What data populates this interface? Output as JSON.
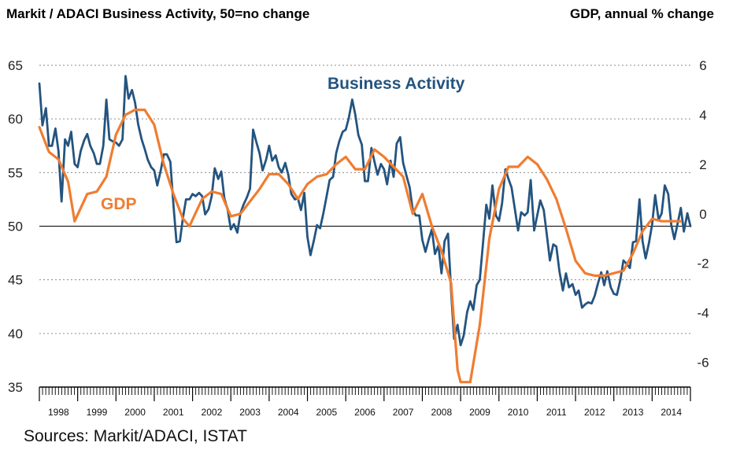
{
  "chart_data": {
    "type": "line",
    "title_left": "Markit / ADACI  Business Activity, 50=no change",
    "title_right": "GDP, annual % change",
    "source": "Sources: Markit/ADACI, ISTAT",
    "left_axis": {
      "ylim": [
        35,
        65
      ],
      "ticks": [
        "35",
        "40",
        "45",
        "50",
        "55",
        "60",
        "65"
      ]
    },
    "right_axis": {
      "ylim": [
        -7,
        6
      ],
      "ticks": [
        "-6",
        "-4",
        "-2",
        "0",
        "2",
        "4",
        "6"
      ]
    },
    "reference_line": 50,
    "grid": "dotted horizontal",
    "x_categories": [
      "1998",
      "1999",
      "2000",
      "2001",
      "2002",
      "2003",
      "2004",
      "2005",
      "2006",
      "2007",
      "2008",
      "2009",
      "2010",
      "2011",
      "2012",
      "2013",
      "2014"
    ],
    "series": [
      {
        "name": "Business Activity",
        "axis": "left",
        "color": "#24547f",
        "points": [
          [
            1998.0,
            63.3
          ],
          [
            1998.08,
            59.4
          ],
          [
            1998.17,
            61.0
          ],
          [
            1998.25,
            57.5
          ],
          [
            1998.33,
            57.5
          ],
          [
            1998.42,
            59.1
          ],
          [
            1998.5,
            57.0
          ],
          [
            1998.58,
            52.3
          ],
          [
            1998.67,
            58.1
          ],
          [
            1998.75,
            57.5
          ],
          [
            1998.83,
            58.8
          ],
          [
            1998.92,
            55.8
          ],
          [
            1999.0,
            55.5
          ],
          [
            1999.08,
            57.0
          ],
          [
            1999.17,
            58.0
          ],
          [
            1999.25,
            58.6
          ],
          [
            1999.33,
            57.5
          ],
          [
            1999.42,
            56.8
          ],
          [
            1999.5,
            55.8
          ],
          [
            1999.58,
            55.8
          ],
          [
            1999.67,
            57.5
          ],
          [
            1999.75,
            61.8
          ],
          [
            1999.83,
            58.1
          ],
          [
            1999.92,
            57.9
          ],
          [
            2000.0,
            57.8
          ],
          [
            2000.08,
            57.5
          ],
          [
            2000.17,
            58.1
          ],
          [
            2000.25,
            64.0
          ],
          [
            2000.33,
            61.9
          ],
          [
            2000.42,
            62.7
          ],
          [
            2000.5,
            61.5
          ],
          [
            2000.58,
            59.5
          ],
          [
            2000.67,
            58.1
          ],
          [
            2000.75,
            57.2
          ],
          [
            2000.83,
            56.2
          ],
          [
            2000.92,
            55.5
          ],
          [
            2001.0,
            55.2
          ],
          [
            2001.08,
            53.8
          ],
          [
            2001.17,
            55.2
          ],
          [
            2001.25,
            56.7
          ],
          [
            2001.33,
            56.7
          ],
          [
            2001.42,
            56.0
          ],
          [
            2001.5,
            52.0
          ],
          [
            2001.58,
            48.5
          ],
          [
            2001.67,
            48.6
          ],
          [
            2001.75,
            50.8
          ],
          [
            2001.83,
            52.5
          ],
          [
            2001.92,
            52.5
          ],
          [
            2002.0,
            53.0
          ],
          [
            2002.08,
            52.8
          ],
          [
            2002.17,
            53.1
          ],
          [
            2002.25,
            52.8
          ],
          [
            2002.33,
            51.1
          ],
          [
            2002.42,
            51.6
          ],
          [
            2002.5,
            52.8
          ],
          [
            2002.58,
            55.4
          ],
          [
            2002.67,
            54.4
          ],
          [
            2002.75,
            55.1
          ],
          [
            2002.83,
            52.6
          ],
          [
            2002.92,
            51.5
          ],
          [
            2003.0,
            49.7
          ],
          [
            2003.08,
            50.2
          ],
          [
            2003.17,
            49.4
          ],
          [
            2003.25,
            51.2
          ],
          [
            2003.33,
            52.0
          ],
          [
            2003.42,
            52.7
          ],
          [
            2003.5,
            53.5
          ],
          [
            2003.58,
            59.0
          ],
          [
            2003.67,
            57.8
          ],
          [
            2003.75,
            56.8
          ],
          [
            2003.83,
            55.2
          ],
          [
            2003.92,
            56.2
          ],
          [
            2004.0,
            57.5
          ],
          [
            2004.08,
            56.1
          ],
          [
            2004.17,
            56.6
          ],
          [
            2004.25,
            55.5
          ],
          [
            2004.33,
            55.0
          ],
          [
            2004.42,
            55.9
          ],
          [
            2004.5,
            54.8
          ],
          [
            2004.58,
            53.0
          ],
          [
            2004.67,
            52.5
          ],
          [
            2004.75,
            52.6
          ],
          [
            2004.83,
            51.5
          ],
          [
            2004.92,
            53.1
          ],
          [
            2005.0,
            49.0
          ],
          [
            2005.08,
            47.3
          ],
          [
            2005.17,
            48.7
          ],
          [
            2005.25,
            50.1
          ],
          [
            2005.33,
            49.8
          ],
          [
            2005.42,
            51.3
          ],
          [
            2005.5,
            52.8
          ],
          [
            2005.58,
            54.3
          ],
          [
            2005.67,
            54.6
          ],
          [
            2005.75,
            56.8
          ],
          [
            2005.83,
            57.9
          ],
          [
            2005.92,
            58.8
          ],
          [
            2006.0,
            59.0
          ],
          [
            2006.08,
            60.1
          ],
          [
            2006.17,
            61.8
          ],
          [
            2006.25,
            60.4
          ],
          [
            2006.33,
            58.5
          ],
          [
            2006.42,
            57.6
          ],
          [
            2006.5,
            54.2
          ],
          [
            2006.58,
            54.2
          ],
          [
            2006.67,
            57.3
          ],
          [
            2006.75,
            56.0
          ],
          [
            2006.83,
            54.8
          ],
          [
            2006.92,
            55.8
          ],
          [
            2007.0,
            55.3
          ],
          [
            2007.08,
            53.9
          ],
          [
            2007.17,
            56.1
          ],
          [
            2007.25,
            54.6
          ],
          [
            2007.33,
            57.7
          ],
          [
            2007.42,
            58.3
          ],
          [
            2007.5,
            55.9
          ],
          [
            2007.58,
            54.8
          ],
          [
            2007.67,
            53.6
          ],
          [
            2007.75,
            51.5
          ],
          [
            2007.83,
            51.0
          ],
          [
            2007.92,
            51.0
          ],
          [
            2008.0,
            48.7
          ],
          [
            2008.08,
            47.6
          ],
          [
            2008.17,
            48.8
          ],
          [
            2008.25,
            49.7
          ],
          [
            2008.33,
            47.4
          ],
          [
            2008.42,
            48.2
          ],
          [
            2008.5,
            45.6
          ],
          [
            2008.58,
            48.6
          ],
          [
            2008.67,
            49.3
          ],
          [
            2008.75,
            44.0
          ],
          [
            2008.83,
            39.5
          ],
          [
            2008.92,
            40.8
          ],
          [
            2009.0,
            38.9
          ],
          [
            2009.08,
            39.8
          ],
          [
            2009.17,
            42.0
          ],
          [
            2009.25,
            43.0
          ],
          [
            2009.33,
            42.2
          ],
          [
            2009.42,
            44.5
          ],
          [
            2009.5,
            45.0
          ],
          [
            2009.58,
            48.2
          ],
          [
            2009.67,
            52.0
          ],
          [
            2009.75,
            50.7
          ],
          [
            2009.83,
            53.8
          ],
          [
            2009.92,
            51.0
          ],
          [
            2010.0,
            50.5
          ],
          [
            2010.08,
            52.1
          ],
          [
            2010.17,
            55.3
          ],
          [
            2010.25,
            54.4
          ],
          [
            2010.33,
            53.6
          ],
          [
            2010.42,
            51.5
          ],
          [
            2010.5,
            49.6
          ],
          [
            2010.58,
            51.3
          ],
          [
            2010.67,
            51.0
          ],
          [
            2010.75,
            51.3
          ],
          [
            2010.83,
            54.3
          ],
          [
            2010.92,
            49.6
          ],
          [
            2011.0,
            51.0
          ],
          [
            2011.08,
            52.4
          ],
          [
            2011.17,
            51.5
          ],
          [
            2011.25,
            49.2
          ],
          [
            2011.33,
            46.8
          ],
          [
            2011.42,
            48.3
          ],
          [
            2011.5,
            48.1
          ],
          [
            2011.58,
            45.8
          ],
          [
            2011.67,
            44.0
          ],
          [
            2011.75,
            45.6
          ],
          [
            2011.83,
            44.3
          ],
          [
            2011.92,
            44.6
          ],
          [
            2012.0,
            43.6
          ],
          [
            2012.08,
            44.0
          ],
          [
            2012.17,
            42.4
          ],
          [
            2012.25,
            42.7
          ],
          [
            2012.33,
            42.9
          ],
          [
            2012.42,
            42.8
          ],
          [
            2012.5,
            43.5
          ],
          [
            2012.58,
            44.6
          ],
          [
            2012.67,
            45.7
          ],
          [
            2012.75,
            44.5
          ],
          [
            2012.83,
            45.8
          ],
          [
            2012.92,
            44.3
          ],
          [
            2013.0,
            43.7
          ],
          [
            2013.08,
            43.6
          ],
          [
            2013.17,
            45.0
          ],
          [
            2013.25,
            46.8
          ],
          [
            2013.33,
            46.5
          ],
          [
            2013.42,
            46.1
          ],
          [
            2013.5,
            48.5
          ],
          [
            2013.58,
            48.6
          ],
          [
            2013.67,
            52.5
          ],
          [
            2013.75,
            48.6
          ],
          [
            2013.83,
            47.0
          ],
          [
            2013.92,
            48.5
          ],
          [
            2014.0,
            50.2
          ],
          [
            2014.08,
            52.9
          ],
          [
            2014.17,
            50.6
          ],
          [
            2014.25,
            51.2
          ],
          [
            2014.33,
            53.8
          ],
          [
            2014.42,
            53.0
          ],
          [
            2014.5,
            50.1
          ],
          [
            2014.58,
            48.8
          ],
          [
            2014.67,
            50.3
          ],
          [
            2014.75,
            51.7
          ],
          [
            2014.83,
            49.5
          ],
          [
            2014.92,
            51.2
          ],
          [
            2015.0,
            50.0
          ]
        ]
      },
      {
        "name": "GDP",
        "axis": "right",
        "color": "#ef7d31",
        "points": [
          [
            1998.0,
            3.5
          ],
          [
            1998.25,
            2.5
          ],
          [
            1998.5,
            2.2
          ],
          [
            1998.75,
            1.3
          ],
          [
            1998.92,
            -0.3
          ],
          [
            1999.25,
            0.8
          ],
          [
            1999.5,
            0.9
          ],
          [
            1999.75,
            1.5
          ],
          [
            2000.0,
            3.2
          ],
          [
            2000.25,
            4.0
          ],
          [
            2000.5,
            4.2
          ],
          [
            2000.75,
            4.2
          ],
          [
            2001.0,
            3.6
          ],
          [
            2001.25,
            2.0
          ],
          [
            2001.5,
            0.8
          ],
          [
            2001.75,
            -0.2
          ],
          [
            2001.92,
            -0.5
          ],
          [
            2002.25,
            0.6
          ],
          [
            2002.5,
            0.9
          ],
          [
            2002.75,
            0.8
          ],
          [
            2003.0,
            -0.1
          ],
          [
            2003.25,
            0.0
          ],
          [
            2003.5,
            0.5
          ],
          [
            2003.75,
            1.0
          ],
          [
            2004.0,
            1.6
          ],
          [
            2004.25,
            1.6
          ],
          [
            2004.5,
            1.2
          ],
          [
            2004.75,
            0.6
          ],
          [
            2005.0,
            1.2
          ],
          [
            2005.25,
            1.5
          ],
          [
            2005.5,
            1.6
          ],
          [
            2005.75,
            2.0
          ],
          [
            2006.0,
            2.3
          ],
          [
            2006.25,
            1.8
          ],
          [
            2006.5,
            1.8
          ],
          [
            2006.75,
            2.6
          ],
          [
            2007.0,
            2.3
          ],
          [
            2007.25,
            1.9
          ],
          [
            2007.5,
            1.5
          ],
          [
            2007.75,
            0.0
          ],
          [
            2008.0,
            0.8
          ],
          [
            2008.25,
            -0.5
          ],
          [
            2008.5,
            -1.5
          ],
          [
            2008.75,
            -2.8
          ],
          [
            2008.92,
            -6.3
          ],
          [
            2009.0,
            -6.8
          ],
          [
            2009.25,
            -6.8
          ],
          [
            2009.5,
            -4.5
          ],
          [
            2009.75,
            -1.0
          ],
          [
            2010.0,
            1.0
          ],
          [
            2010.25,
            1.9
          ],
          [
            2010.5,
            1.9
          ],
          [
            2010.75,
            2.3
          ],
          [
            2011.0,
            2.0
          ],
          [
            2011.25,
            1.4
          ],
          [
            2011.5,
            0.6
          ],
          [
            2011.75,
            -0.6
          ],
          [
            2012.0,
            -1.9
          ],
          [
            2012.25,
            -2.4
          ],
          [
            2012.5,
            -2.5
          ],
          [
            2012.75,
            -2.5
          ],
          [
            2013.0,
            -2.4
          ],
          [
            2013.25,
            -2.3
          ],
          [
            2013.5,
            -1.6
          ],
          [
            2013.75,
            -0.7
          ],
          [
            2014.0,
            -0.2
          ],
          [
            2014.25,
            -0.3
          ],
          [
            2014.5,
            -0.3
          ],
          [
            2014.75,
            -0.3
          ]
        ]
      }
    ],
    "labels": {
      "business_activity": "Business Activity",
      "gdp": "GDP"
    }
  }
}
